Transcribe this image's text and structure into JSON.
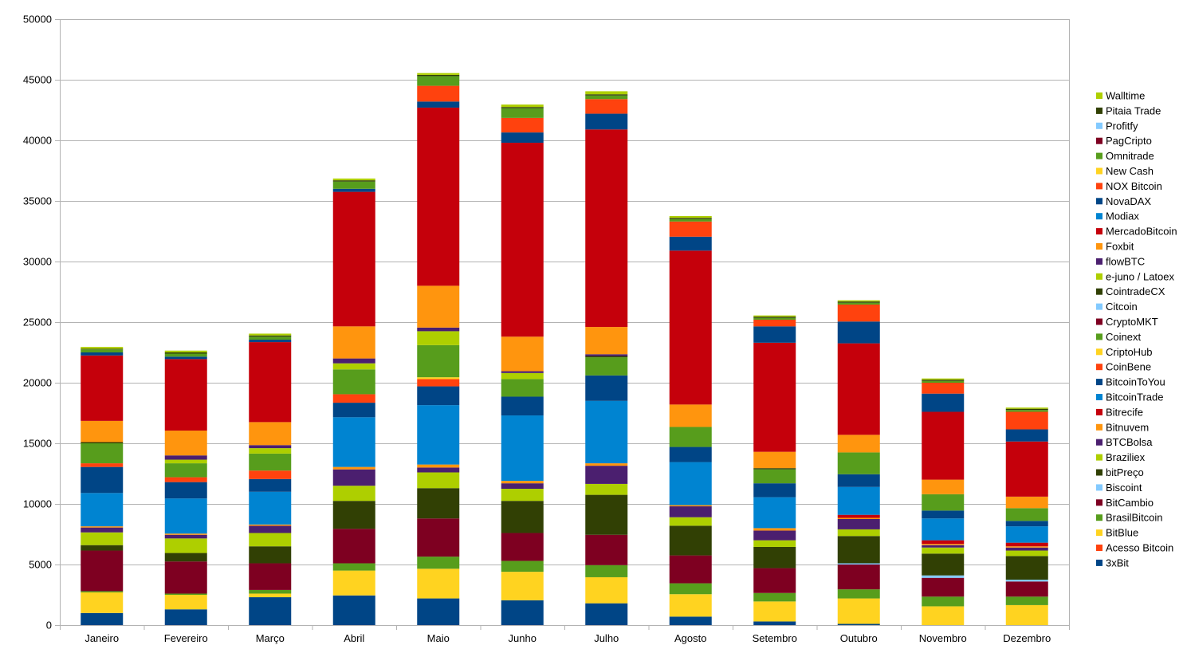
{
  "chart_data": {
    "type": "bar",
    "stacked": true,
    "title": "",
    "xlabel": "",
    "ylabel": "",
    "ylim": [
      0,
      50000
    ],
    "yticks": [
      0,
      5000,
      10000,
      15000,
      20000,
      25000,
      30000,
      35000,
      40000,
      45000,
      50000
    ],
    "grid": true,
    "legend_position": "right",
    "categories": [
      "Janeiro",
      "Fevereiro",
      "Março",
      "Abril",
      "Maio",
      "Junho",
      "Julho",
      "Agosto",
      "Setembro",
      "Outubro",
      "Novembro",
      "Dezembro"
    ],
    "series": [
      {
        "name": "3xBit",
        "color": "#004586",
        "values": [
          1000,
          1300,
          2300,
          2450,
          2200,
          2050,
          1800,
          700,
          300,
          100,
          0,
          0
        ]
      },
      {
        "name": "Acesso Bitcoin",
        "color": "#ff420e",
        "values": [
          0,
          0,
          0,
          0,
          0,
          0,
          0,
          0,
          0,
          0,
          0,
          0
        ]
      },
      {
        "name": "BitBlue",
        "color": "#ffd320",
        "values": [
          1700,
          1200,
          300,
          2050,
          2450,
          2350,
          2150,
          1850,
          1650,
          2100,
          1550,
          1650
        ]
      },
      {
        "name": "BrasilBitcoin",
        "color": "#579d1c",
        "values": [
          100,
          100,
          300,
          600,
          1000,
          900,
          1000,
          900,
          700,
          750,
          800,
          700
        ]
      },
      {
        "name": "BitCambio",
        "color": "#7e0021",
        "values": [
          3350,
          2650,
          2200,
          2850,
          3150,
          2300,
          2500,
          2300,
          2050,
          2050,
          1550,
          1250
        ]
      },
      {
        "name": "Biscoint",
        "color": "#83caff",
        "values": [
          0,
          0,
          0,
          0,
          0,
          0,
          0,
          0,
          0,
          100,
          200,
          150
        ]
      },
      {
        "name": "bitPreço",
        "color": "#314004",
        "values": [
          450,
          700,
          1400,
          2300,
          2500,
          2650,
          3300,
          2450,
          1750,
          2250,
          1800,
          1950
        ]
      },
      {
        "name": "Braziliex",
        "color": "#aecf00",
        "values": [
          1050,
          1200,
          1100,
          1250,
          1300,
          1000,
          900,
          700,
          550,
          550,
          500,
          450
        ]
      },
      {
        "name": "BTCBolsa",
        "color": "#4b1f6f",
        "values": [
          400,
          300,
          600,
          1350,
          400,
          450,
          1500,
          900,
          800,
          850,
          200,
          250
        ]
      },
      {
        "name": "Bitnuvem",
        "color": "#ff950e",
        "values": [
          100,
          100,
          100,
          200,
          250,
          200,
          200,
          100,
          200,
          100,
          100,
          100
        ]
      },
      {
        "name": "Bitrecife",
        "color": "#c5000b",
        "values": [
          0,
          0,
          0,
          0,
          0,
          0,
          0,
          0,
          0,
          250,
          300,
          300
        ]
      },
      {
        "name": "BitcoinTrade",
        "color": "#0084d1",
        "values": [
          2750,
          2900,
          2700,
          4100,
          4900,
          5400,
          5150,
          3550,
          2550,
          2300,
          1800,
          1350
        ]
      },
      {
        "name": "BitcoinToYou",
        "color": "#004586",
        "values": [
          2150,
          1350,
          1050,
          1200,
          1550,
          1550,
          2100,
          1250,
          1150,
          1050,
          650,
          450
        ]
      },
      {
        "name": "CoinBene",
        "color": "#ff420e",
        "values": [
          300,
          400,
          700,
          700,
          600,
          0,
          0,
          0,
          0,
          0,
          0,
          0
        ]
      },
      {
        "name": "CriptoHub",
        "color": "#ffd320",
        "values": [
          0,
          0,
          0,
          0,
          150,
          0,
          0,
          0,
          0,
          0,
          0,
          0
        ]
      },
      {
        "name": "Coinext",
        "color": "#579d1c",
        "values": [
          1650,
          1150,
          1400,
          2050,
          2650,
          1450,
          1500,
          1650,
          1150,
          1800,
          1350,
          1050
        ]
      },
      {
        "name": "CryptoMKT",
        "color": "#7e0021",
        "values": [
          0,
          0,
          0,
          0,
          0,
          0,
          0,
          0,
          0,
          0,
          0,
          0
        ]
      },
      {
        "name": "Citcoin",
        "color": "#83caff",
        "values": [
          0,
          0,
          0,
          0,
          0,
          0,
          0,
          0,
          0,
          0,
          0,
          0
        ]
      },
      {
        "name": "CointradeCX",
        "color": "#314004",
        "values": [
          100,
          0,
          0,
          0,
          0,
          0,
          100,
          0,
          100,
          0,
          0,
          0
        ]
      },
      {
        "name": "e-juno / Latoex",
        "color": "#aecf00",
        "values": [
          0,
          300,
          450,
          500,
          1150,
          500,
          0,
          0,
          0,
          0,
          0,
          0
        ]
      },
      {
        "name": "flowBTC",
        "color": "#4b1f6f",
        "values": [
          0,
          350,
          250,
          400,
          300,
          150,
          150,
          0,
          0,
          0,
          0,
          0
        ]
      },
      {
        "name": "Foxbit",
        "color": "#ff950e",
        "values": [
          1750,
          2050,
          1900,
          2650,
          3450,
          2850,
          2250,
          1850,
          1350,
          1450,
          1200,
          950
        ]
      },
      {
        "name": "MercadoBitcoin",
        "color": "#c5000b",
        "values": [
          5400,
          5900,
          6600,
          11100,
          14700,
          16000,
          16300,
          12700,
          9000,
          7550,
          5600,
          4550
        ]
      },
      {
        "name": "Modiax",
        "color": "#0084d1",
        "values": [
          0,
          0,
          0,
          0,
          0,
          0,
          0,
          0,
          0,
          0,
          0,
          0
        ]
      },
      {
        "name": "NovaDAX",
        "color": "#004586",
        "values": [
          250,
          200,
          200,
          250,
          500,
          850,
          1300,
          1150,
          1350,
          1800,
          1500,
          1000
        ]
      },
      {
        "name": "NOX Bitcoin",
        "color": "#ff420e",
        "values": [
          0,
          0,
          0,
          0,
          1300,
          1200,
          1200,
          1250,
          550,
          1400,
          900,
          1450
        ]
      },
      {
        "name": "New Cash",
        "color": "#ffd320",
        "values": [
          0,
          0,
          0,
          0,
          0,
          0,
          0,
          0,
          0,
          0,
          0,
          0
        ]
      },
      {
        "name": "Omnitrade",
        "color": "#579d1c",
        "values": [
          250,
          250,
          250,
          600,
          800,
          800,
          300,
          200,
          150,
          150,
          150,
          150
        ]
      },
      {
        "name": "PagCripto",
        "color": "#7e0021",
        "values": [
          0,
          0,
          0,
          0,
          0,
          0,
          0,
          0,
          0,
          0,
          0,
          0
        ]
      },
      {
        "name": "Profitfy",
        "color": "#83caff",
        "values": [
          0,
          0,
          0,
          0,
          0,
          0,
          0,
          0,
          0,
          0,
          0,
          0
        ]
      },
      {
        "name": "Pitaia Trade",
        "color": "#314004",
        "values": [
          50,
          100,
          100,
          100,
          100,
          100,
          100,
          100,
          100,
          100,
          100,
          100
        ]
      },
      {
        "name": "Walltime",
        "color": "#aecf00",
        "values": [
          150,
          150,
          150,
          150,
          150,
          200,
          250,
          150,
          100,
          100,
          100,
          100
        ]
      }
    ]
  }
}
